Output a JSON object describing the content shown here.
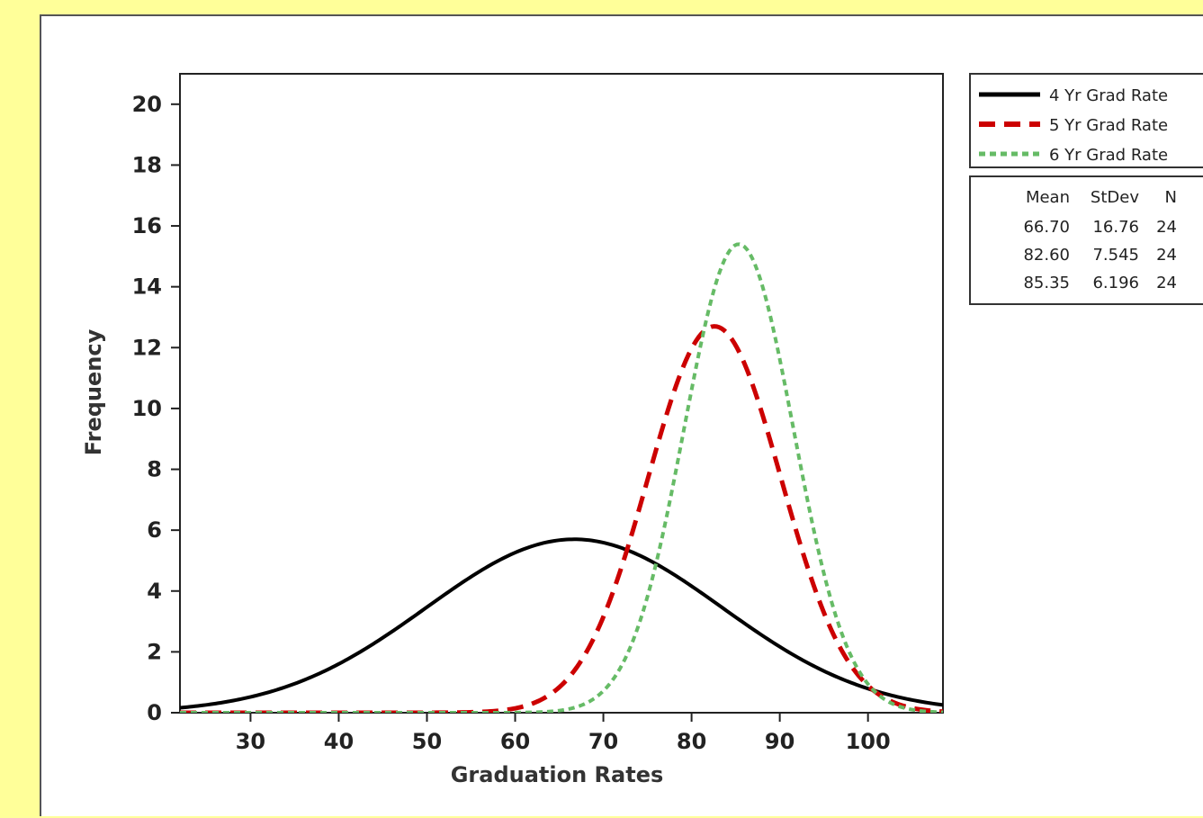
{
  "chart_data": {
    "type": "line",
    "xlabel": "Graduation Rates",
    "ylabel": "Frequency",
    "xlim": [
      22,
      108.5
    ],
    "ylim": [
      0,
      21
    ],
    "xticks": [
      30,
      40,
      50,
      60,
      70,
      80,
      90,
      100
    ],
    "yticks": [
      0,
      2,
      4,
      6,
      8,
      10,
      12,
      14,
      16,
      18,
      20
    ],
    "grid": false,
    "legend_position": "right",
    "series": [
      {
        "name": "4 Yr Grad Rate",
        "color": "#000000",
        "style": "solid",
        "mean": 66.7,
        "stdev": 16.76,
        "n": 24,
        "x": [
          22,
          30,
          40,
          50,
          60,
          66.7,
          70,
          80,
          90,
          100,
          108.5
        ],
        "y": [
          0.15,
          0.55,
          1.6,
          3.5,
          5.4,
          5.7,
          5.6,
          4.3,
          2.4,
          0.9,
          0.3
        ]
      },
      {
        "name": "5 Yr Grad Rate",
        "color": "#cc0000",
        "style": "dashed",
        "mean": 82.6,
        "stdev": 7.545,
        "n": 24,
        "x": [
          55,
          60,
          65,
          70,
          75,
          80,
          82.6,
          85,
          90,
          95,
          100,
          105,
          108.5
        ],
        "y": [
          0.0,
          0.2,
          1.2,
          3.9,
          8.1,
          12.0,
          12.7,
          12.1,
          8.2,
          4.1,
          1.2,
          0.25,
          0.05
        ]
      },
      {
        "name": "6 Yr Grad Rate",
        "color": "#66bb66",
        "style": "dotted",
        "mean": 85.35,
        "stdev": 6.196,
        "n": 24,
        "x": [
          62,
          65,
          70,
          75,
          80,
          85.35,
          90,
          95,
          100,
          105,
          108.5
        ],
        "y": [
          0.0,
          0.1,
          0.8,
          4.0,
          10.4,
          15.4,
          11.8,
          4.9,
          1.0,
          0.1,
          0.0
        ]
      }
    ],
    "stats_table": {
      "headers": [
        "Mean",
        "StDev",
        "N"
      ],
      "rows": [
        [
          "66.70",
          "16.76",
          "24"
        ],
        [
          "82.60",
          "7.545",
          "24"
        ],
        [
          "85.35",
          "6.196",
          "24"
        ]
      ]
    }
  }
}
